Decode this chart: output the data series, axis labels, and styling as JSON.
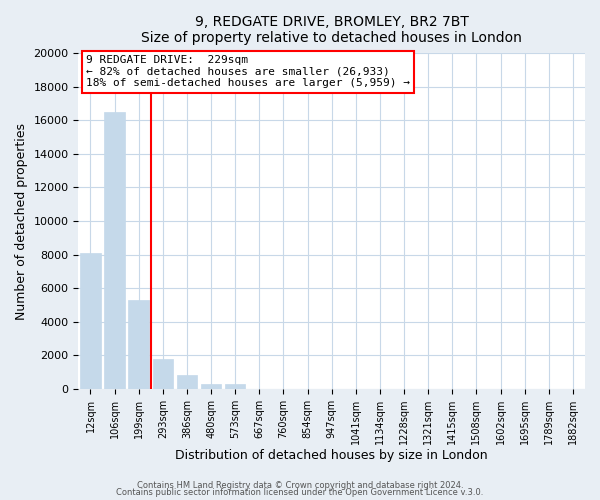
{
  "title1": "9, REDGATE DRIVE, BROMLEY, BR2 7BT",
  "title2": "Size of property relative to detached houses in London",
  "xlabel": "Distribution of detached houses by size in London",
  "ylabel": "Number of detached properties",
  "bar_labels": [
    "12sqm",
    "106sqm",
    "199sqm",
    "293sqm",
    "386sqm",
    "480sqm",
    "573sqm",
    "667sqm",
    "760sqm",
    "854sqm",
    "947sqm",
    "1041sqm",
    "1134sqm",
    "1228sqm",
    "1321sqm",
    "1415sqm",
    "1508sqm",
    "1602sqm",
    "1695sqm",
    "1789sqm",
    "1882sqm"
  ],
  "bar_heights": [
    8100,
    16500,
    5300,
    1800,
    800,
    300,
    270,
    0,
    0,
    0,
    0,
    0,
    0,
    0,
    0,
    0,
    0,
    0,
    0,
    0,
    0
  ],
  "bar_color": "#c5d9ea",
  "bar_edge_color": "#c5d9ea",
  "property_line_x": 2.5,
  "property_line_color": "red",
  "ylim": [
    0,
    20000
  ],
  "yticks": [
    0,
    2000,
    4000,
    6000,
    8000,
    10000,
    12000,
    14000,
    16000,
    18000,
    20000
  ],
  "annotation_text1": "9 REDGATE DRIVE:  229sqm",
  "annotation_text2": "← 82% of detached houses are smaller (26,933)",
  "annotation_text3": "18% of semi-detached houses are larger (5,959) →",
  "footer1": "Contains HM Land Registry data © Crown copyright and database right 2024.",
  "footer2": "Contains public sector information licensed under the Open Government Licence v.3.0.",
  "bg_color": "#e8eef4",
  "plot_bg_color": "#ffffff",
  "grid_color": "#c8d8e8"
}
